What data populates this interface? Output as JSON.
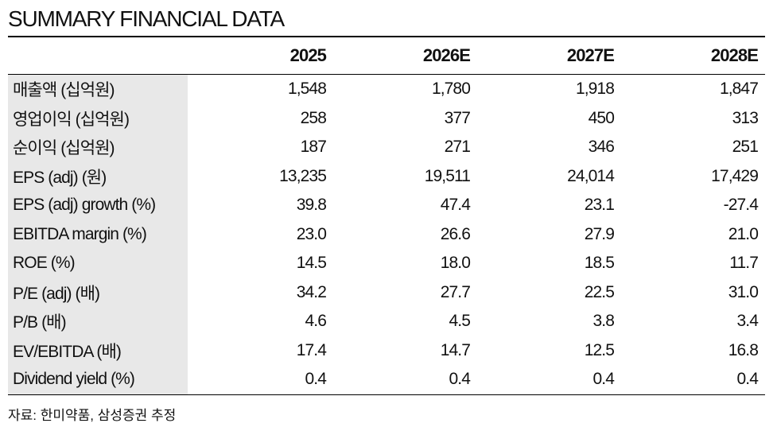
{
  "title": "SUMMARY FINANCIAL DATA",
  "columns": [
    "2025",
    "2026E",
    "2027E",
    "2028E"
  ],
  "rows": [
    {
      "label": "매출액 (십억원)",
      "values": [
        "1,548",
        "1,780",
        "1,918",
        "1,847"
      ]
    },
    {
      "label": "영업이익 (십억원)",
      "values": [
        "258",
        "377",
        "450",
        "313"
      ]
    },
    {
      "label": "순이익 (십억원)",
      "values": [
        "187",
        "271",
        "346",
        "251"
      ]
    },
    {
      "label": "EPS (adj) (원)",
      "values": [
        "13,235",
        "19,511",
        "24,014",
        "17,429"
      ]
    },
    {
      "label": "EPS (adj) growth (%)",
      "values": [
        "39.8",
        "47.4",
        "23.1",
        "-27.4"
      ]
    },
    {
      "label": "EBITDA margin (%)",
      "values": [
        "23.0",
        "26.6",
        "27.9",
        "21.0"
      ]
    },
    {
      "label": "ROE (%)",
      "values": [
        "14.5",
        "18.0",
        "18.5",
        "11.7"
      ]
    },
    {
      "label": "P/E (adj) (배)",
      "values": [
        "34.2",
        "27.7",
        "22.5",
        "31.0"
      ]
    },
    {
      "label": "P/B (배)",
      "values": [
        "4.6",
        "4.5",
        "3.8",
        "3.4"
      ]
    },
    {
      "label": "EV/EBITDA (배)",
      "values": [
        "17.4",
        "14.7",
        "12.5",
        "16.8"
      ]
    },
    {
      "label": "Dividend yield (%)",
      "values": [
        "0.4",
        "0.4",
        "0.4",
        "0.4"
      ]
    }
  ],
  "source": "자료: 한미약품, 삼성증권 추정"
}
